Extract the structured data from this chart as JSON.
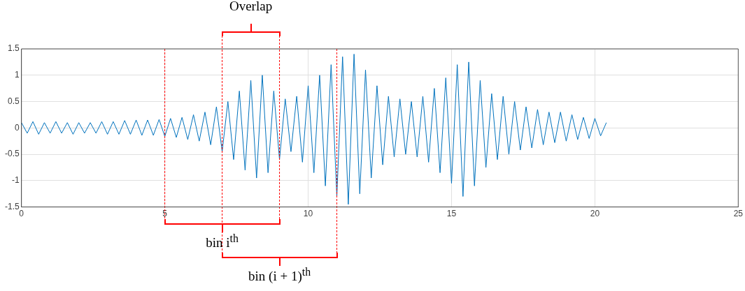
{
  "chart_data": {
    "type": "line",
    "x": [
      0,
      0.2,
      0.4,
      0.6,
      0.8,
      1.0,
      1.2,
      1.4,
      1.6,
      1.8,
      2.0,
      2.2,
      2.4,
      2.6,
      2.8,
      3.0,
      3.2,
      3.4,
      3.6,
      3.8,
      4.0,
      4.2,
      4.4,
      4.6,
      4.8,
      5.0,
      5.2,
      5.4,
      5.6,
      5.8,
      6.0,
      6.2,
      6.4,
      6.6,
      6.8,
      7.0,
      7.2,
      7.4,
      7.6,
      7.8,
      8.0,
      8.2,
      8.4,
      8.6,
      8.8,
      9.0,
      9.2,
      9.4,
      9.6,
      9.8,
      10.0,
      10.2,
      10.4,
      10.6,
      10.8,
      11.0,
      11.2,
      11.4,
      11.6,
      11.8,
      12.0,
      12.2,
      12.4,
      12.6,
      12.8,
      13.0,
      13.2,
      13.4,
      13.6,
      13.8,
      14.0,
      14.2,
      14.4,
      14.6,
      14.8,
      15.0,
      15.2,
      15.4,
      15.6,
      15.8,
      16.0,
      16.2,
      16.4,
      16.6,
      16.8,
      17.0,
      17.2,
      17.4,
      17.6,
      17.8,
      18.0,
      18.2,
      18.4,
      18.6,
      18.8,
      19.0,
      19.2,
      19.4,
      19.6,
      19.8,
      20.0,
      20.2,
      20.4
    ],
    "series": [
      {
        "color": "#0072bd",
        "values": [
          0.1,
          -0.1,
          0.12,
          -0.12,
          0.1,
          -0.1,
          0.12,
          -0.1,
          0.1,
          -0.12,
          0.1,
          -0.1,
          0.1,
          -0.1,
          0.12,
          -0.12,
          0.12,
          -0.12,
          0.14,
          -0.12,
          0.15,
          -0.14,
          0.15,
          -0.14,
          0.16,
          -0.16,
          0.18,
          -0.18,
          0.2,
          -0.22,
          0.25,
          -0.25,
          0.3,
          -0.32,
          0.4,
          -0.45,
          0.5,
          -0.6,
          0.7,
          -0.8,
          0.9,
          -0.95,
          1.0,
          -0.85,
          0.7,
          -0.6,
          0.55,
          -0.45,
          0.6,
          -0.65,
          0.8,
          -0.85,
          1.0,
          -1.1,
          1.2,
          -1.3,
          1.35,
          -1.45,
          1.4,
          -1.25,
          1.1,
          -0.95,
          0.8,
          -0.7,
          0.6,
          -0.55,
          0.55,
          -0.5,
          0.5,
          -0.55,
          0.6,
          -0.65,
          0.75,
          -0.85,
          0.95,
          -1.05,
          1.2,
          -1.3,
          1.25,
          -1.1,
          0.9,
          -0.75,
          0.65,
          -0.6,
          0.6,
          -0.5,
          0.5,
          -0.42,
          0.4,
          -0.38,
          0.35,
          -0.32,
          0.3,
          -0.28,
          0.3,
          -0.25,
          0.25,
          -0.22,
          0.2,
          -0.2,
          0.18,
          -0.15,
          0.1
        ]
      }
    ],
    "xlim": [
      0,
      25
    ],
    "xticks": [
      0,
      5,
      10,
      15,
      20,
      25
    ],
    "ylim": [
      -1.5,
      1.5
    ],
    "yticks": [
      -1.5,
      -1,
      -0.5,
      0,
      0.5,
      1,
      1.5
    ],
    "grid": true,
    "marker": "none",
    "line_style": "solid",
    "ref_lines": [
      {
        "axis": "x",
        "value": 5,
        "color": "#ff0000",
        "line_style": "dashed"
      },
      {
        "axis": "x",
        "value": 7,
        "color": "#ff0000",
        "line_style": "dashed"
      },
      {
        "axis": "x",
        "value": 9,
        "color": "#ff0000",
        "line_style": "dashed"
      },
      {
        "axis": "x",
        "value": 11,
        "color": "#ff0000",
        "line_style": "dashed"
      }
    ],
    "annotations": [
      "Overlap",
      "bin i$^{th}$",
      "bin (i + 1)$^{th}$"
    ]
  }
}
